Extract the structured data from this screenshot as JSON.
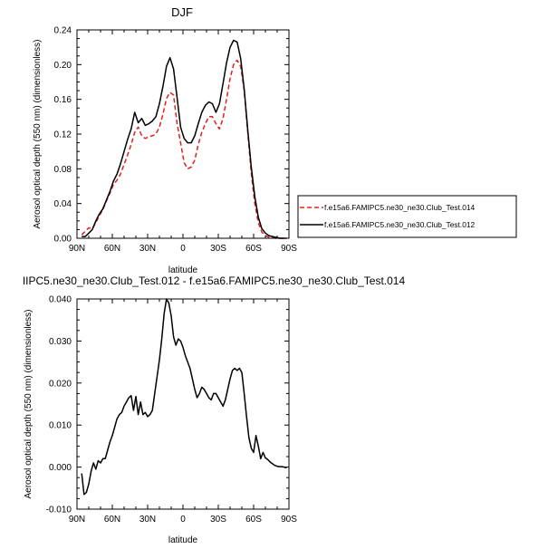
{
  "chart_data": [
    {
      "type": "line",
      "title": "DJF",
      "xlabel": "latitude",
      "ylabel": "Aerosol optical depth (550 nm) (dimensionless)",
      "xlim": [
        90,
        -90
      ],
      "ylim": [
        0,
        0.24
      ],
      "x_tick_values": [
        90,
        60,
        30,
        0,
        -30,
        -60,
        -90
      ],
      "x_tick_labels": [
        "90N",
        "60N",
        "30N",
        "0",
        "30S",
        "60S",
        "90S"
      ],
      "y_ticks": [
        "0.00",
        "0.04",
        "0.08",
        "0.12",
        "0.16",
        "0.20",
        "0.24"
      ],
      "legend": "right",
      "series": [
        {
          "name": "f.e15a6.FAMIPC5.ne30_ne30.Club_Test.014",
          "color": "#e02020",
          "dash": "dashed",
          "x": [
            86,
            83,
            80,
            77,
            74,
            71,
            68,
            65,
            62,
            59,
            56,
            53,
            50,
            47,
            44,
            41,
            38,
            35,
            32,
            29,
            26,
            23,
            20,
            17,
            14,
            11,
            8,
            5,
            2,
            -1,
            -4,
            -7,
            -10,
            -13,
            -16,
            -19,
            -22,
            -25,
            -28,
            -31,
            -34,
            -37,
            -40,
            -43,
            -46,
            -49,
            -52,
            -55,
            -58,
            -61,
            -64,
            -67,
            -70,
            -73,
            -76,
            -79,
            -82,
            -85,
            -88
          ],
          "y": [
            0.004,
            0.008,
            0.012,
            0.011,
            0.018,
            0.026,
            0.033,
            0.043,
            0.052,
            0.062,
            0.067,
            0.074,
            0.085,
            0.096,
            0.108,
            0.122,
            0.128,
            0.118,
            0.115,
            0.117,
            0.118,
            0.12,
            0.128,
            0.143,
            0.161,
            0.168,
            0.165,
            0.132,
            0.11,
            0.087,
            0.08,
            0.082,
            0.09,
            0.108,
            0.122,
            0.132,
            0.14,
            0.14,
            0.132,
            0.126,
            0.138,
            0.16,
            0.184,
            0.2,
            0.205,
            0.198,
            0.17,
            0.122,
            0.075,
            0.04,
            0.018,
            0.007,
            0.003,
            0.001,
            0.001,
            0.0,
            0.0,
            0.0,
            0.0
          ]
        },
        {
          "name": "f.e15a6.FAMIPC5.ne30_ne30.Club_Test.012",
          "color": "#000000",
          "dash": "solid",
          "x": [
            86,
            83,
            80,
            77,
            74,
            71,
            68,
            65,
            62,
            59,
            56,
            53,
            50,
            47,
            44,
            41,
            38,
            35,
            32,
            29,
            26,
            23,
            20,
            17,
            14,
            11,
            8,
            5,
            2,
            -1,
            -4,
            -7,
            -10,
            -13,
            -16,
            -19,
            -22,
            -25,
            -28,
            -31,
            -34,
            -37,
            -40,
            -43,
            -46,
            -49,
            -52,
            -55,
            -58,
            -61,
            -64,
            -67,
            -70,
            -73,
            -76,
            -79,
            -82,
            -85,
            -88
          ],
          "y": [
            0.002,
            0.002,
            0.006,
            0.01,
            0.02,
            0.028,
            0.034,
            0.044,
            0.054,
            0.066,
            0.074,
            0.086,
            0.1,
            0.114,
            0.126,
            0.145,
            0.133,
            0.138,
            0.13,
            0.132,
            0.135,
            0.14,
            0.155,
            0.175,
            0.198,
            0.208,
            0.195,
            0.162,
            0.128,
            0.115,
            0.11,
            0.11,
            0.118,
            0.132,
            0.145,
            0.153,
            0.157,
            0.155,
            0.145,
            0.155,
            0.178,
            0.202,
            0.22,
            0.228,
            0.226,
            0.207,
            0.172,
            0.125,
            0.082,
            0.048,
            0.024,
            0.011,
            0.006,
            0.003,
            0.002,
            0.001,
            0.0,
            0.0,
            0.0
          ]
        }
      ]
    },
    {
      "type": "line",
      "title": "IIPC5.ne30_ne30.Club_Test.012 - f.e15a6.FAMIPC5.ne30_ne30.Club_Test.014",
      "xlabel": "latitude",
      "ylabel": "Aerosol optical depth (550 nm) (dimensionless)",
      "xlim": [
        90,
        -90
      ],
      "ylim": [
        -0.01,
        0.04
      ],
      "x_tick_values": [
        90,
        60,
        30,
        0,
        -30,
        -60,
        -90
      ],
      "x_tick_labels": [
        "90N",
        "60N",
        "30N",
        "0",
        "30S",
        "60S",
        "90S"
      ],
      "y_ticks": [
        "-0.010",
        "0.000",
        "0.010",
        "0.020",
        "0.030",
        "0.040"
      ],
      "series": [
        {
          "color": "#000000",
          "dash": "solid",
          "x": [
            86,
            84,
            82,
            80,
            78,
            76,
            74,
            72,
            70,
            68,
            66,
            64,
            62,
            60,
            58,
            56,
            54,
            52,
            50,
            48,
            46,
            44,
            42,
            40,
            38,
            36,
            34,
            32,
            30,
            28,
            26,
            24,
            22,
            20,
            18,
            16,
            14,
            12,
            10,
            8,
            6,
            4,
            2,
            0,
            -2,
            -4,
            -6,
            -8,
            -10,
            -12,
            -14,
            -16,
            -18,
            -20,
            -22,
            -24,
            -26,
            -28,
            -30,
            -32,
            -34,
            -36,
            -38,
            -40,
            -42,
            -44,
            -46,
            -48,
            -50,
            -52,
            -54,
            -56,
            -58,
            -60,
            -62,
            -64,
            -66,
            -68,
            -70,
            -72,
            -74,
            -76,
            -78,
            -80,
            -82,
            -84,
            -86,
            -88
          ],
          "y": [
            -0.0015,
            -0.0065,
            -0.006,
            -0.004,
            -0.001,
            0.001,
            -0.0005,
            0.0015,
            0.001,
            0.002,
            0.002,
            0.004,
            0.006,
            0.0075,
            0.0095,
            0.0115,
            0.0125,
            0.013,
            0.0145,
            0.0155,
            0.0165,
            0.017,
            0.0135,
            0.0168,
            0.0125,
            0.0155,
            0.0125,
            0.013,
            0.012,
            0.0125,
            0.0135,
            0.0175,
            0.0215,
            0.0255,
            0.0305,
            0.0365,
            0.04,
            0.039,
            0.036,
            0.031,
            0.029,
            0.0305,
            0.03,
            0.0285,
            0.0265,
            0.025,
            0.0235,
            0.021,
            0.0185,
            0.0165,
            0.0175,
            0.019,
            0.0185,
            0.0175,
            0.0165,
            0.016,
            0.0175,
            0.0175,
            0.0165,
            0.0155,
            0.0145,
            0.016,
            0.0185,
            0.021,
            0.023,
            0.0235,
            0.023,
            0.0235,
            0.0225,
            0.0175,
            0.012,
            0.007,
            0.0045,
            0.0035,
            0.0075,
            0.005,
            0.002,
            0.0035,
            0.0022,
            0.0018,
            0.0012,
            0.0008,
            0.0004,
            0.0002,
            0.0001,
            0.0001,
            0.0,
            -0.0002
          ]
        }
      ]
    }
  ]
}
